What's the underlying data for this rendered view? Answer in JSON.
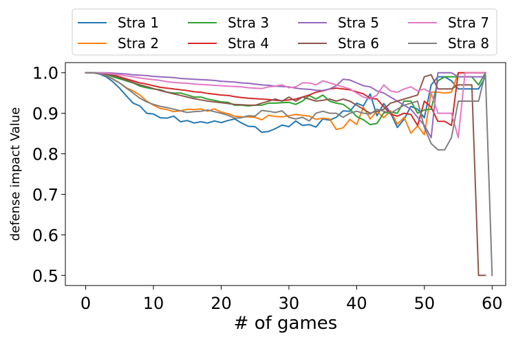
{
  "chart_data": {
    "type": "line",
    "title": "",
    "xlabel": "# of games",
    "ylabel": "defense impact Value",
    "xlim": [
      -3,
      62
    ],
    "ylim": [
      0.475,
      1.025
    ],
    "xticks": [
      0,
      10,
      20,
      30,
      40,
      50,
      60
    ],
    "yticks": [
      0.5,
      0.6,
      0.7,
      0.8,
      0.9,
      1.0
    ],
    "ytick_labels": [
      "0.5",
      "0.6",
      "0.7",
      "0.8",
      "0.9",
      "1.0"
    ],
    "grid": false,
    "legend_position": "top, above plot (4 columns)",
    "x": [
      0,
      1,
      2,
      3,
      4,
      5,
      6,
      7,
      8,
      9,
      10,
      11,
      12,
      13,
      14,
      15,
      16,
      17,
      18,
      19,
      20,
      21,
      22,
      23,
      24,
      25,
      26,
      27,
      28,
      29,
      30,
      31,
      32,
      33,
      34,
      35,
      36,
      37,
      38,
      39,
      40,
      41,
      42,
      43,
      44,
      45,
      46,
      47,
      48,
      49,
      50,
      51,
      52,
      53,
      54,
      55,
      56,
      57,
      58,
      59,
      60
    ],
    "series": [
      {
        "name": "Stra 1",
        "color": "#1f77b4",
        "values": [
          1.0,
          1.0,
          0.997,
          0.99,
          0.978,
          0.962,
          0.943,
          0.925,
          0.918,
          0.9,
          0.898,
          0.889,
          0.888,
          0.893,
          0.879,
          0.882,
          0.876,
          0.879,
          0.876,
          0.881,
          0.877,
          0.882,
          0.886,
          0.876,
          0.868,
          0.867,
          0.853,
          0.855,
          0.862,
          0.871,
          0.867,
          0.881,
          0.87,
          0.872,
          0.866,
          0.886,
          0.883,
          0.89,
          0.906,
          0.905,
          0.925,
          0.918,
          0.948,
          0.894,
          0.924,
          0.901,
          0.865,
          0.885,
          0.917,
          0.91,
          0.889,
          0.97,
          0.99,
          0.99,
          0.98,
          0.96,
          0.96,
          0.96,
          0.96,
          0.99,
          null
        ]
      },
      {
        "name": "Stra 2",
        "color": "#ff7f0e",
        "values": [
          1.0,
          1.0,
          0.998,
          0.993,
          0.984,
          0.975,
          0.963,
          0.955,
          0.945,
          0.93,
          0.92,
          0.912,
          0.909,
          0.904,
          0.906,
          0.91,
          0.909,
          0.911,
          0.905,
          0.911,
          0.903,
          0.899,
          0.893,
          0.891,
          0.891,
          0.89,
          0.884,
          0.895,
          0.892,
          0.891,
          0.894,
          0.897,
          0.895,
          0.893,
          0.885,
          0.888,
          0.886,
          0.86,
          0.864,
          0.885,
          0.872,
          0.915,
          0.886,
          0.905,
          0.889,
          0.906,
          0.873,
          0.89,
          0.851,
          0.869,
          0.847,
          0.952,
          0.952,
          0.95,
          0.952,
          1.0,
          1.0,
          1.0,
          1.0,
          1.0,
          null
        ]
      },
      {
        "name": "Stra 3",
        "color": "#2ca02c",
        "values": [
          1.0,
          1.0,
          0.999,
          0.996,
          0.99,
          0.985,
          0.98,
          0.975,
          0.967,
          0.963,
          0.96,
          0.958,
          0.952,
          0.95,
          0.95,
          0.945,
          0.94,
          0.94,
          0.935,
          0.932,
          0.928,
          0.927,
          0.92,
          0.92,
          0.918,
          0.92,
          0.92,
          0.925,
          0.925,
          0.926,
          0.927,
          0.922,
          0.93,
          0.944,
          0.935,
          0.945,
          0.93,
          0.925,
          0.922,
          0.91,
          0.892,
          0.884,
          0.872,
          0.875,
          0.901,
          0.903,
          0.9,
          0.93,
          0.93,
          0.9,
          0.908,
          0.91,
          0.98,
          0.99,
          0.99,
          0.99,
          0.99,
          0.99,
          0.97,
          1.0,
          null
        ]
      },
      {
        "name": "Stra 4",
        "color": "#d62728",
        "values": [
          1.0,
          1.0,
          0.999,
          0.998,
          0.995,
          0.99,
          0.985,
          0.98,
          0.975,
          0.972,
          0.968,
          0.964,
          0.962,
          0.96,
          0.958,
          0.956,
          0.953,
          0.952,
          0.949,
          0.947,
          0.945,
          0.944,
          0.941,
          0.939,
          0.937,
          0.936,
          0.935,
          0.934,
          0.932,
          0.931,
          0.933,
          0.935,
          0.94,
          0.945,
          0.952,
          0.955,
          0.96,
          0.962,
          0.96,
          0.958,
          0.953,
          0.948,
          0.937,
          0.935,
          0.916,
          0.898,
          0.893,
          0.9,
          0.897,
          0.87,
          0.93,
          0.915,
          0.88,
          0.88,
          0.87,
          1.0,
          1.0,
          1.0,
          1.0,
          1.0,
          null
        ]
      },
      {
        "name": "Stra 5",
        "color": "#9467bd",
        "values": [
          1.0,
          1.0,
          1.0,
          1.0,
          0.999,
          0.998,
          0.997,
          0.995,
          0.994,
          0.993,
          0.991,
          0.99,
          0.989,
          0.988,
          0.986,
          0.985,
          0.984,
          0.983,
          0.982,
          0.981,
          0.979,
          0.978,
          0.977,
          0.975,
          0.974,
          0.972,
          0.97,
          0.969,
          0.967,
          0.966,
          0.965,
          0.962,
          0.96,
          0.959,
          0.957,
          0.956,
          0.96,
          0.968,
          0.984,
          0.982,
          0.975,
          0.968,
          0.965,
          0.955,
          0.95,
          0.94,
          0.93,
          0.92,
          0.91,
          0.89,
          0.87,
          0.84,
          1.0,
          1.0,
          1.0,
          0.99,
          0.99,
          0.99,
          0.99,
          0.99,
          null
        ]
      },
      {
        "name": "Stra 6",
        "color": "#8c564b",
        "values": [
          1.0,
          1.0,
          0.999,
          0.997,
          0.993,
          0.988,
          0.982,
          0.976,
          0.97,
          0.966,
          0.961,
          0.956,
          0.952,
          0.948,
          0.944,
          0.94,
          0.936,
          0.933,
          0.93,
          0.928,
          0.926,
          0.924,
          0.922,
          0.921,
          0.92,
          0.92,
          0.925,
          0.93,
          0.935,
          0.93,
          0.94,
          0.93,
          0.94,
          0.935,
          0.93,
          0.932,
          0.935,
          0.93,
          0.935,
          0.93,
          0.92,
          0.91,
          0.9,
          0.905,
          0.91,
          0.925,
          0.93,
          0.935,
          0.94,
          0.945,
          0.99,
          0.995,
          0.96,
          0.96,
          0.96,
          0.97,
          0.97,
          0.97,
          0.5,
          0.5,
          null
        ]
      },
      {
        "name": "Stra 7",
        "color": "#e377c2",
        "values": [
          1.0,
          1.0,
          1.0,
          0.999,
          0.997,
          0.995,
          0.992,
          0.99,
          0.987,
          0.985,
          0.983,
          0.981,
          0.978,
          0.976,
          0.975,
          0.974,
          0.972,
          0.971,
          0.97,
          0.969,
          0.968,
          0.967,
          0.966,
          0.965,
          0.963,
          0.962,
          0.961,
          0.965,
          0.967,
          0.97,
          0.963,
          0.965,
          0.975,
          0.975,
          0.97,
          0.98,
          0.975,
          0.97,
          0.965,
          0.96,
          0.95,
          0.94,
          0.935,
          0.945,
          0.97,
          0.955,
          0.952,
          0.96,
          0.965,
          0.955,
          0.96,
          0.95,
          0.9,
          0.9,
          0.9,
          0.84,
          1.0,
          1.0,
          1.0,
          1.0,
          null
        ]
      },
      {
        "name": "Stra 8",
        "color": "#7f7f7f",
        "values": [
          1.0,
          1.0,
          0.998,
          0.993,
          0.985,
          0.975,
          0.962,
          0.95,
          0.937,
          0.928,
          0.922,
          0.917,
          0.914,
          0.91,
          0.906,
          0.902,
          0.904,
          0.905,
          0.908,
          0.904,
          0.9,
          0.895,
          0.888,
          0.889,
          0.894,
          0.893,
          0.907,
          0.905,
          0.902,
          0.906,
          0.89,
          0.886,
          0.89,
          0.881,
          0.9,
          0.905,
          0.9,
          0.9,
          0.89,
          0.9,
          0.905,
          0.9,
          0.898,
          0.91,
          0.905,
          0.9,
          0.91,
          0.92,
          0.925,
          0.93,
          0.865,
          0.825,
          0.81,
          0.81,
          0.84,
          0.93,
          0.93,
          0.93,
          0.93,
          1.0,
          0.5
        ]
      }
    ]
  }
}
